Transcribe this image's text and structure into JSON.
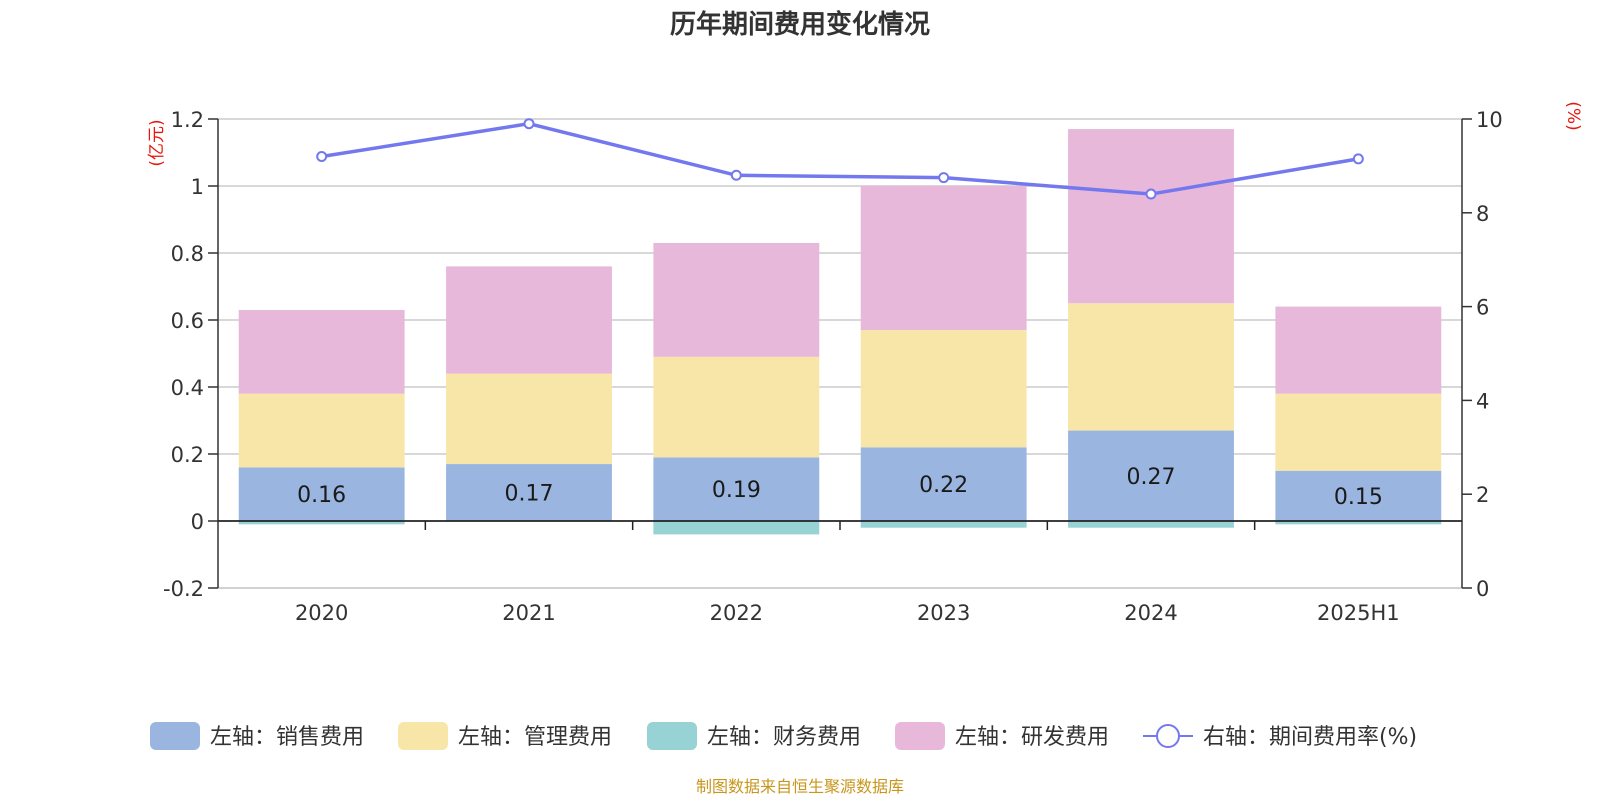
{
  "title": "历年期间费用变化情况",
  "source": "制图数据来自恒生聚源数据库",
  "chart_data": {
    "type": "bar",
    "stacked": true,
    "title": "历年期间费用变化情况",
    "categories": [
      "2020",
      "2021",
      "2022",
      "2023",
      "2024",
      "2025H1"
    ],
    "y_left": {
      "unit": "(亿元)",
      "ylim": [
        -0.2,
        1.2
      ],
      "ticks": [
        -0.2,
        0,
        0.2,
        0.4,
        0.6,
        0.8,
        1,
        1.2
      ],
      "tick_labels": [
        "-0.2",
        "0",
        "0.2",
        "0.4",
        "0.6",
        "0.8",
        "1",
        "1.2"
      ]
    },
    "y_right": {
      "unit": "(%)",
      "ylim": [
        0,
        10
      ],
      "ticks": [
        0,
        2,
        4,
        6,
        8,
        10
      ],
      "tick_labels": [
        "0",
        "2",
        "4",
        "6",
        "8",
        "10"
      ]
    },
    "grid": true,
    "legend_position": "bottom",
    "series": [
      {
        "name": "左轴：销售费用",
        "axis": "left",
        "type": "bar",
        "color": "#9ab6e0",
        "values": [
          0.16,
          0.17,
          0.19,
          0.22,
          0.27,
          0.15
        ],
        "labels": [
          "0.16",
          "0.17",
          "0.19",
          "0.22",
          "0.27",
          "0.15"
        ]
      },
      {
        "name": "左轴：管理费用",
        "axis": "left",
        "type": "bar",
        "color": "#f8e6a8",
        "values": [
          0.22,
          0.27,
          0.3,
          0.35,
          0.38,
          0.23
        ]
      },
      {
        "name": "左轴：财务费用",
        "axis": "left",
        "type": "bar",
        "color": "#97d3d4",
        "values": [
          -0.01,
          0.0,
          -0.04,
          -0.02,
          -0.02,
          -0.01
        ]
      },
      {
        "name": "左轴：研发费用",
        "axis": "left",
        "type": "bar",
        "color": "#e7b8d9",
        "values": [
          0.25,
          0.32,
          0.34,
          0.43,
          0.52,
          0.26
        ]
      },
      {
        "name": "右轴：期间费用率(%)",
        "axis": "right",
        "type": "line",
        "color": "#7378ee",
        "values": [
          9.2,
          9.9,
          8.8,
          8.75,
          8.4,
          9.15
        ]
      }
    ]
  }
}
